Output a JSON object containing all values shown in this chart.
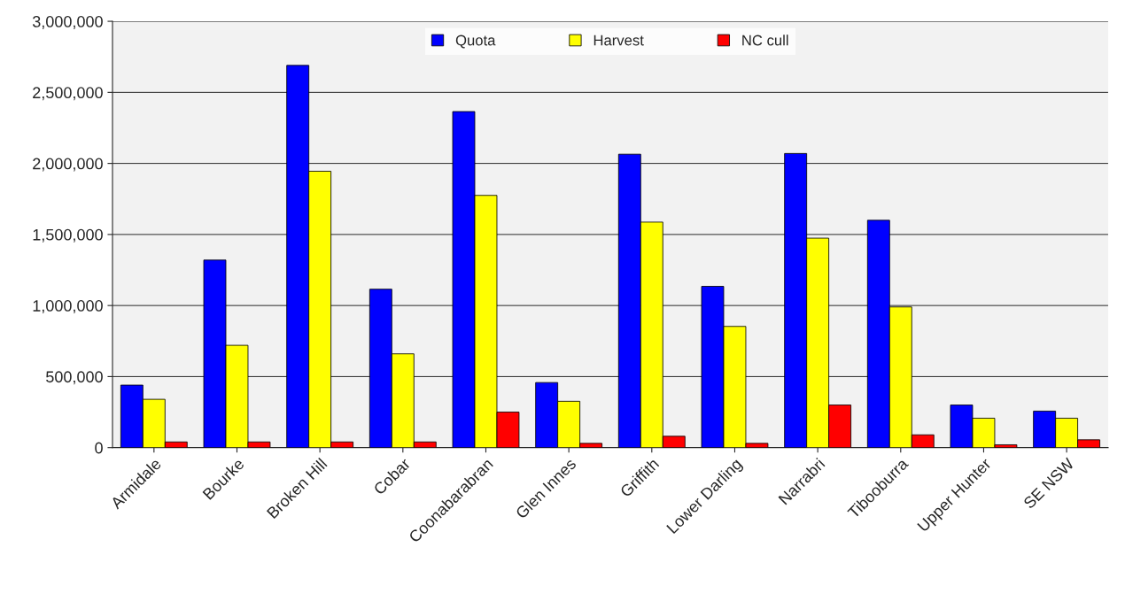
{
  "chart_data": {
    "type": "bar",
    "categories": [
      "Armidale",
      "Bourke",
      "Broken Hill",
      "Cobar",
      "Coonabarabran",
      "Glen Innes",
      "Griffith",
      "Lower Darling",
      "Narrabri",
      "Tibooburra",
      "Upper Hunter",
      "SE NSW"
    ],
    "series": [
      {
        "name": "Quota",
        "color": "#0000ff",
        "values": [
          440000,
          1320000,
          2690000,
          1115000,
          2365000,
          458000,
          2065000,
          1135000,
          2070000,
          1600000,
          300000,
          257000
        ]
      },
      {
        "name": "Harvest",
        "color": "#ffff00",
        "values": [
          340000,
          720000,
          1945000,
          660000,
          1775000,
          326000,
          1587000,
          853000,
          1474000,
          990000,
          207000,
          207000
        ]
      },
      {
        "name": "NC cull",
        "color": "#ff0000",
        "values": [
          40000,
          40000,
          40000,
          40000,
          250000,
          30000,
          80000,
          30000,
          300000,
          90000,
          20000,
          55000
        ]
      }
    ],
    "ylim": [
      0,
      3000000
    ],
    "yticks": [
      {
        "value": 0,
        "label": "0"
      },
      {
        "value": 500000,
        "label": "500,000"
      },
      {
        "value": 1000000,
        "label": "1,000,000"
      },
      {
        "value": 1500000,
        "label": "1,500,000"
      },
      {
        "value": 2000000,
        "label": "2,000,000"
      },
      {
        "value": 2500000,
        "label": "2,500,000"
      },
      {
        "value": 3000000,
        "label": "3,000,000"
      }
    ],
    "grid": "y",
    "legend": "top"
  }
}
